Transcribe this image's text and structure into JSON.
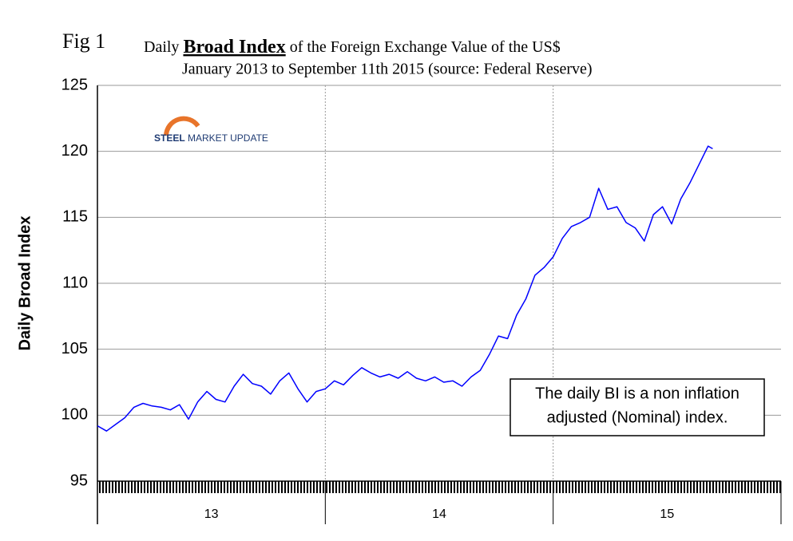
{
  "chart_data": {
    "type": "line",
    "fig_label": "Fig 1",
    "title_parts": [
      "Daily ",
      "Broad Index",
      " of the Foreign Exchange Value of the US$"
    ],
    "subtitle": "January 2013 to September 11th 2015 (source: Federal Reserve)",
    "y_label": "Daily Broad Index",
    "logo": [
      "STEEL",
      "MARKET UPDATE"
    ],
    "annotation": [
      "The daily BI is a non inflation",
      "adjusted (Nominal) index."
    ],
    "year_labels": [
      "13",
      "14",
      "15"
    ],
    "xlim": [
      13,
      16
    ],
    "ylim": [
      95,
      125
    ],
    "yticks": [
      95,
      100,
      105,
      110,
      115,
      120,
      125
    ],
    "grid": true,
    "color": "#0000ff",
    "x": [
      13.0,
      13.04,
      13.08,
      13.12,
      13.16,
      13.2,
      13.24,
      13.28,
      13.32,
      13.36,
      13.4,
      13.44,
      13.48,
      13.52,
      13.56,
      13.6,
      13.64,
      13.68,
      13.72,
      13.76,
      13.8,
      13.84,
      13.88,
      13.92,
      13.96,
      14.0,
      14.04,
      14.08,
      14.12,
      14.16,
      14.2,
      14.24,
      14.28,
      14.32,
      14.36,
      14.4,
      14.44,
      14.48,
      14.52,
      14.56,
      14.6,
      14.64,
      14.68,
      14.72,
      14.76,
      14.8,
      14.84,
      14.88,
      14.92,
      14.96,
      15.0,
      15.04,
      15.08,
      15.12,
      15.16,
      15.2,
      15.24,
      15.28,
      15.32,
      15.36,
      15.4,
      15.44,
      15.48,
      15.52,
      15.56,
      15.6,
      15.64,
      15.68,
      15.7
    ],
    "values": [
      99.2,
      98.8,
      99.3,
      99.8,
      100.6,
      100.9,
      100.7,
      100.6,
      100.4,
      100.8,
      99.7,
      101.0,
      101.8,
      101.2,
      101.0,
      102.2,
      103.1,
      102.4,
      102.2,
      101.6,
      102.6,
      103.2,
      102.0,
      101.0,
      101.8,
      102.0,
      102.6,
      102.3,
      103.0,
      103.6,
      103.2,
      102.9,
      103.1,
      102.8,
      103.3,
      102.8,
      102.6,
      102.9,
      102.5,
      102.6,
      102.2,
      102.9,
      103.4,
      104.6,
      106.0,
      105.8,
      107.6,
      108.8,
      110.6,
      111.2,
      112.0,
      113.4,
      114.3,
      114.6,
      115.0,
      117.2,
      115.6,
      115.8,
      114.6,
      114.2,
      113.2,
      115.2,
      115.8,
      114.5,
      116.4,
      117.6,
      119.0,
      120.4,
      120.2
    ]
  }
}
